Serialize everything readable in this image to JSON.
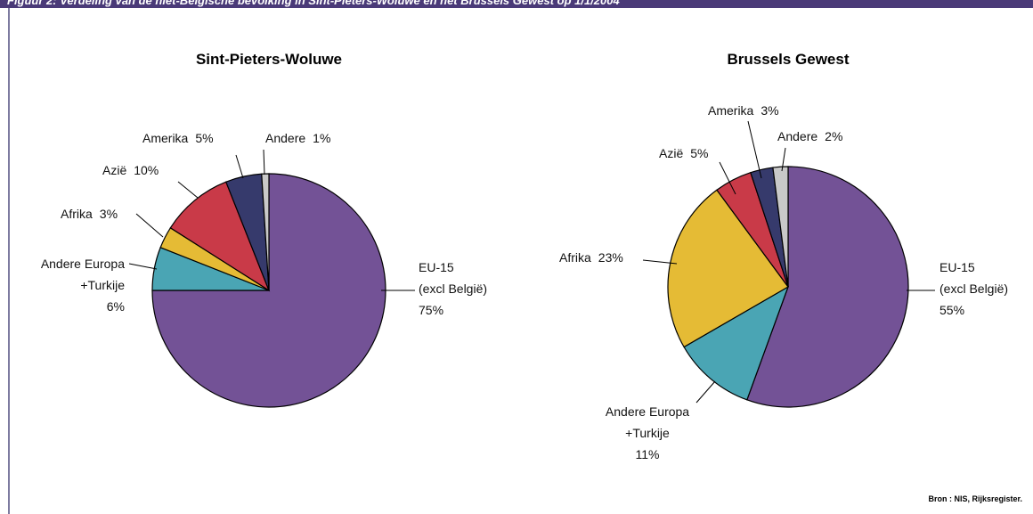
{
  "header": "Figuur 2: Verdeling van de niet-Belgische bevolking in Sint-Pieters-Woluwe en het Brussels Gewest op 1/1/2004",
  "source": "Bron : NIS, Rijksregister.",
  "chart_data": [
    {
      "type": "pie",
      "title": "Sint-Pieters-Woluwe",
      "categories": [
        "EU-15\n(excl België)",
        "Andere Europa\n+Turkije",
        "Afrika",
        "Azië",
        "Amerika",
        "Andere"
      ],
      "values": [
        75,
        6,
        3,
        10,
        5,
        1
      ],
      "value_labels": [
        "75%",
        "6%",
        "3%",
        "10%",
        "5%",
        "1%"
      ],
      "colors": [
        "#735296",
        "#4aa5b4",
        "#e5bb35",
        "#c93a48",
        "#363a6c",
        "#c9c9c9"
      ]
    },
    {
      "type": "pie",
      "title": "Brussels Gewest",
      "categories": [
        "EU-15\n(excl België)",
        "Andere Europa\n+Turkije",
        "Afrika",
        "Azië",
        "Amerika",
        "Andere"
      ],
      "values": [
        55,
        11,
        23,
        5,
        3,
        2
      ],
      "value_labels": [
        "55%",
        "11%",
        "23%",
        "5%",
        "3%",
        "2%"
      ],
      "colors": [
        "#735296",
        "#4aa5b4",
        "#e5bb35",
        "#c93a48",
        "#363a6c",
        "#c9c9c9"
      ]
    }
  ]
}
